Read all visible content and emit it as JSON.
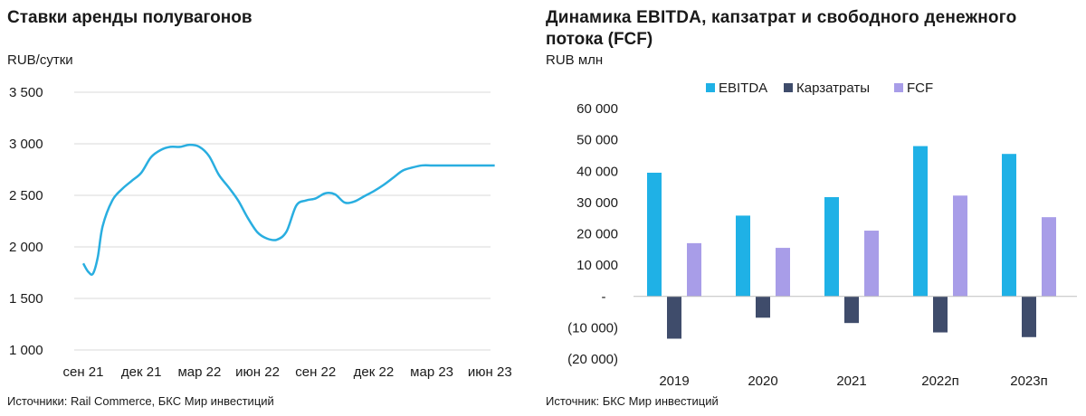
{
  "chart_data": [
    {
      "type": "line",
      "title": "Ставки аренды полувагонов",
      "ylabel": "RUB/сутки",
      "source": "Источники: Rail Commerce, БКС Мир инвестиций",
      "ylim": [
        1000,
        3500
      ],
      "y_ticks": [
        "3 500",
        "3 000",
        "2 500",
        "2 000",
        "1 500",
        "1 000"
      ],
      "y_tick_values": [
        3500,
        3000,
        2500,
        2000,
        1500,
        1000
      ],
      "x_tick_labels": [
        "сен 21",
        "дек 21",
        "мар 22",
        "июн 22",
        "сен 22",
        "дек 22",
        "мар 23",
        "июн 23"
      ],
      "line_color": "#29aee0",
      "series": [
        {
          "x": [
            0,
            0.25,
            0.5,
            0.75,
            1,
            1.5,
            2,
            2.5,
            3,
            3.5,
            4,
            4.5,
            5,
            5.5,
            6,
            6.5,
            7,
            7.5,
            8,
            8.5,
            9,
            9.5,
            10,
            10.5,
            11,
            11.5,
            12,
            12.5,
            13,
            13.5,
            14,
            14.5,
            15,
            15.5,
            16,
            16.5,
            17,
            17.5,
            18,
            18.5,
            19,
            19.5,
            20,
            20.5,
            21,
            21.25
          ],
          "values": [
            1840,
            1760,
            1740,
            1900,
            2200,
            2450,
            2560,
            2640,
            2720,
            2870,
            2940,
            2970,
            2970,
            2990,
            2970,
            2880,
            2700,
            2580,
            2450,
            2280,
            2140,
            2080,
            2070,
            2150,
            2400,
            2450,
            2470,
            2520,
            2510,
            2430,
            2440,
            2490,
            2540,
            2600,
            2670,
            2740,
            2770,
            2790,
            2790,
            2790,
            2790,
            2790,
            2790,
            2790,
            2790,
            2790
          ]
        }
      ]
    },
    {
      "type": "bar",
      "title": "Динамика EBITDA, капзатрат и свободного денежного потока (FCF)",
      "title_line1": "Динамика EBITDA, капзатрат и свободного денежного",
      "title_line2": "потока (FCF)",
      "ylabel": "RUB млн",
      "source": "Источник: БКС Мир инвестиций",
      "ylim": [
        -20000,
        60000
      ],
      "y_ticks": [
        "60 000",
        "50 000",
        "40 000",
        "30 000",
        "20 000",
        "10 000",
        "-",
        "(10 000)",
        "(20 000)"
      ],
      "y_tick_values": [
        60000,
        50000,
        40000,
        30000,
        20000,
        10000,
        0,
        -10000,
        -20000
      ],
      "categories": [
        "2019",
        "2020",
        "2021",
        "2022п",
        "2023п"
      ],
      "series": [
        {
          "name": "EBITDA",
          "color": "#1fb1e6",
          "values": [
            39500,
            25800,
            31700,
            48000,
            45500
          ]
        },
        {
          "name": "Карзатраты",
          "color": "#3f4c6b",
          "values": [
            -13500,
            -6800,
            -8500,
            -11500,
            -13000
          ]
        },
        {
          "name": "FCF",
          "color": "#a89de8",
          "values": [
            17000,
            15500,
            21000,
            32200,
            25300
          ]
        }
      ],
      "legend_position": "top"
    }
  ]
}
